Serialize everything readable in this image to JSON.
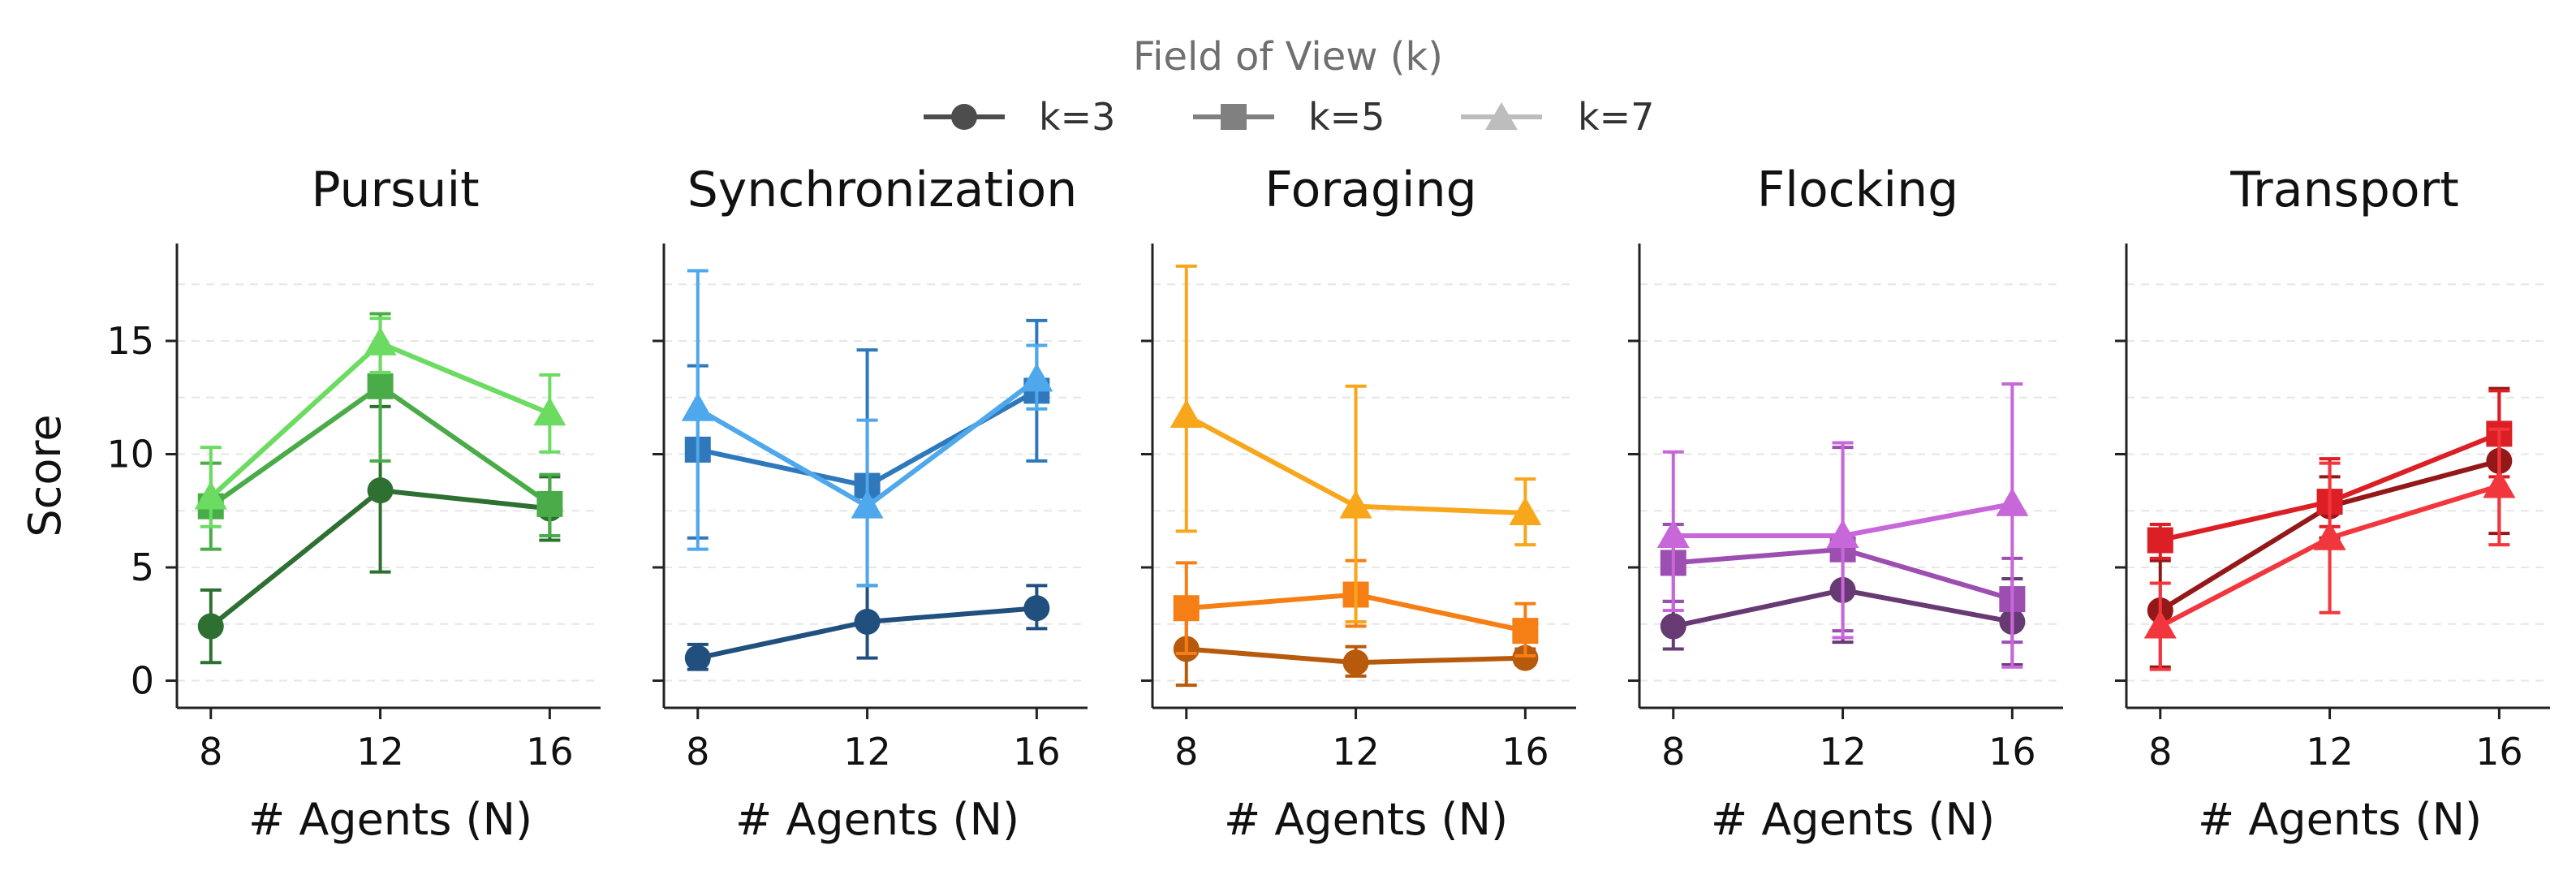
{
  "legend": {
    "title": "Field of View (k)",
    "position": "top-center",
    "entries": [
      {
        "label": "k=3",
        "marker": "circle",
        "color": "#4d4d4d"
      },
      {
        "label": "k=5",
        "marker": "square",
        "color": "#808080"
      },
      {
        "label": "k=7",
        "marker": "triangle",
        "color": "#bdbdbd"
      }
    ]
  },
  "chart_data": [
    {
      "type": "line",
      "title": "Pursuit",
      "xlabel": "# Agents (N)",
      "ylabel": "Score",
      "x": [
        8,
        12,
        16
      ],
      "xlim": [
        7.2,
        17.2
      ],
      "ylim": [
        -1.2,
        19.3
      ],
      "yticks": [
        0,
        5,
        10,
        15
      ],
      "grid": true,
      "series": [
        {
          "name": "k=3",
          "marker": "circle",
          "color": "#2e7031",
          "values": [
            2.4,
            8.4,
            7.6
          ],
          "err_low": [
            0.8,
            4.8,
            6.2
          ],
          "err_high": [
            4.0,
            12.1,
            9.0
          ]
        },
        {
          "name": "k=5",
          "marker": "square",
          "color": "#4aac48",
          "values": [
            7.7,
            13.0,
            7.8
          ],
          "err_low": [
            5.8,
            9.7,
            6.4
          ],
          "err_high": [
            9.6,
            16.2,
            9.1
          ]
        },
        {
          "name": "k=7",
          "marker": "triangle",
          "color": "#6bdb62",
          "values": [
            8.1,
            14.9,
            11.8
          ],
          "err_low": [
            6.8,
            13.6,
            10.1
          ],
          "err_high": [
            10.3,
            16.0,
            13.5
          ]
        }
      ]
    },
    {
      "type": "line",
      "title": "Synchronization",
      "xlabel": "# Agents (N)",
      "ylabel": "",
      "x": [
        8,
        12,
        16
      ],
      "xlim": [
        7.2,
        17.2
      ],
      "ylim": [
        -1.2,
        19.3
      ],
      "yticks": [
        0,
        5,
        10,
        15
      ],
      "grid": true,
      "series": [
        {
          "name": "k=3",
          "marker": "circle",
          "color": "#21507f",
          "values": [
            1.0,
            2.6,
            3.2
          ],
          "err_low": [
            0.5,
            1.0,
            2.3
          ],
          "err_high": [
            1.6,
            4.2,
            4.2
          ]
        },
        {
          "name": "k=5",
          "marker": "square",
          "color": "#2f78bb",
          "values": [
            10.2,
            8.6,
            12.8
          ],
          "err_low": [
            6.3,
            4.2,
            9.7
          ],
          "err_high": [
            13.9,
            14.6,
            15.9
          ]
        },
        {
          "name": "k=7",
          "marker": "triangle",
          "color": "#4fa8ec",
          "values": [
            12.0,
            7.7,
            13.3
          ],
          "err_low": [
            5.8,
            4.2,
            12.0
          ],
          "err_high": [
            18.1,
            11.5,
            14.8
          ]
        }
      ]
    },
    {
      "type": "line",
      "title": "Foraging",
      "xlabel": "# Agents (N)",
      "ylabel": "",
      "x": [
        8,
        12,
        16
      ],
      "xlim": [
        7.2,
        17.2
      ],
      "ylim": [
        -1.2,
        19.3
      ],
      "yticks": [
        0,
        5,
        10,
        15
      ],
      "grid": true,
      "series": [
        {
          "name": "k=3",
          "marker": "circle",
          "color": "#b85a0c",
          "values": [
            1.4,
            0.8,
            1.0
          ],
          "err_low": [
            -0.2,
            0.2,
            0.7
          ],
          "err_high": [
            3.0,
            1.5,
            1.4
          ]
        },
        {
          "name": "k=5",
          "marker": "square",
          "color": "#f57f14",
          "values": [
            3.2,
            3.8,
            2.2
          ],
          "err_low": [
            1.2,
            2.4,
            1.1
          ],
          "err_high": [
            5.2,
            5.3,
            3.4
          ]
        },
        {
          "name": "k=7",
          "marker": "triangle",
          "color": "#f8a61c",
          "values": [
            11.7,
            7.7,
            7.4
          ],
          "err_low": [
            6.6,
            2.6,
            6.0
          ],
          "err_high": [
            18.3,
            13.0,
            8.9
          ]
        }
      ]
    },
    {
      "type": "line",
      "title": "Flocking",
      "xlabel": "# Agents (N)",
      "ylabel": "",
      "x": [
        8,
        12,
        16
      ],
      "xlim": [
        7.2,
        17.2
      ],
      "ylim": [
        -1.2,
        19.3
      ],
      "yticks": [
        0,
        5,
        10,
        15
      ],
      "grid": true,
      "series": [
        {
          "name": "k=3",
          "marker": "circle",
          "color": "#673a73",
          "values": [
            2.4,
            4.0,
            2.6
          ],
          "err_low": [
            1.4,
            1.7,
            0.7
          ],
          "err_high": [
            3.5,
            6.3,
            4.5
          ]
        },
        {
          "name": "k=5",
          "marker": "square",
          "color": "#9c4fb0",
          "values": [
            5.2,
            5.8,
            3.6
          ],
          "err_low": [
            3.5,
            2.2,
            1.7
          ],
          "err_high": [
            6.9,
            10.3,
            5.4
          ]
        },
        {
          "name": "k=7",
          "marker": "triangle",
          "color": "#c767d9",
          "values": [
            6.4,
            6.4,
            7.8
          ],
          "err_low": [
            3.1,
            1.9,
            0.6
          ],
          "err_high": [
            10.1,
            10.5,
            13.1
          ]
        }
      ]
    },
    {
      "type": "line",
      "title": "Transport",
      "xlabel": "# Agents (N)",
      "ylabel": "",
      "x": [
        8,
        12,
        16
      ],
      "xlim": [
        7.2,
        17.2
      ],
      "ylim": [
        -1.2,
        19.3
      ],
      "yticks": [
        0,
        5,
        10,
        15
      ],
      "grid": true,
      "series": [
        {
          "name": "k=3",
          "marker": "circle",
          "color": "#941818",
          "values": [
            3.1,
            7.7,
            9.7
          ],
          "err_low": [
            0.6,
            6.3,
            6.5
          ],
          "err_high": [
            5.3,
            9.0,
            12.9
          ]
        },
        {
          "name": "k=5",
          "marker": "square",
          "color": "#dc1f25",
          "values": [
            6.2,
            7.9,
            10.9
          ],
          "err_low": [
            5.4,
            6.8,
            9.0
          ],
          "err_high": [
            6.9,
            9.8,
            12.8
          ]
        },
        {
          "name": "k=7",
          "marker": "triangle",
          "color": "#f2363d",
          "values": [
            2.4,
            6.3,
            8.6
          ],
          "err_low": [
            0.5,
            3.0,
            6.0
          ],
          "err_high": [
            4.3,
            9.6,
            11.1
          ]
        }
      ]
    }
  ]
}
